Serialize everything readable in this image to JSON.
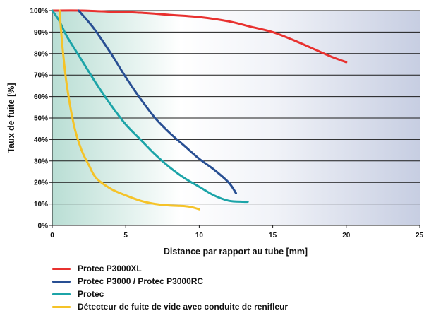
{
  "chart_data": {
    "type": "line",
    "xlabel": "Distance par rapport au tube [mm]",
    "ylabel": "Taux de fuite [%]",
    "xlim": [
      0,
      25
    ],
    "ylim": [
      0,
      100
    ],
    "x_ticks": [
      "0",
      "5",
      "10",
      "15",
      "20",
      "25"
    ],
    "y_ticks": [
      "0%",
      "10%",
      "20%",
      "30%",
      "40%",
      "50%",
      "60%",
      "70%",
      "80%",
      "90%",
      "100%"
    ],
    "grid": "horizontal",
    "legend_position": "bottom",
    "series": [
      {
        "name": "Protec P3000XL",
        "color": "#e8312f",
        "points": [
          [
            0,
            100
          ],
          [
            2,
            100
          ],
          [
            4,
            99.5
          ],
          [
            6,
            99
          ],
          [
            8,
            98
          ],
          [
            10,
            97
          ],
          [
            12,
            95
          ],
          [
            13.5,
            92.5
          ],
          [
            15,
            90
          ],
          [
            16.5,
            86
          ],
          [
            18,
            81.5
          ],
          [
            19,
            78.5
          ],
          [
            20,
            76
          ]
        ]
      },
      {
        "name": "Protec P3000 / Protec P3000RC",
        "color": "#284f93",
        "points": [
          [
            1.8,
            100
          ],
          [
            2.8,
            92
          ],
          [
            4,
            80
          ],
          [
            5,
            69
          ],
          [
            6,
            59
          ],
          [
            7,
            50
          ],
          [
            8,
            43
          ],
          [
            9,
            37
          ],
          [
            10,
            31
          ],
          [
            11,
            26
          ],
          [
            12,
            20
          ],
          [
            12.5,
            15
          ]
        ]
      },
      {
        "name": "Protec",
        "color": "#1ca4a8",
        "points": [
          [
            0,
            100
          ],
          [
            0.5,
            95
          ],
          [
            1,
            88
          ],
          [
            2,
            77
          ],
          [
            3,
            66
          ],
          [
            4,
            56
          ],
          [
            5,
            47
          ],
          [
            6,
            40
          ],
          [
            7,
            33
          ],
          [
            8,
            27
          ],
          [
            9,
            22
          ],
          [
            10,
            18
          ],
          [
            11,
            14
          ],
          [
            12,
            11.5
          ],
          [
            13,
            11
          ],
          [
            13.3,
            11
          ]
        ]
      },
      {
        "name": "Détecteur de fuite de vide avec conduite de renifleur",
        "color": "#f5c328",
        "points": [
          [
            0.5,
            100
          ],
          [
            0.7,
            83
          ],
          [
            1,
            65
          ],
          [
            1.5,
            46
          ],
          [
            2,
            35
          ],
          [
            2.5,
            28
          ],
          [
            3,
            22
          ],
          [
            4,
            17
          ],
          [
            5,
            14
          ],
          [
            6,
            11.5
          ],
          [
            7,
            10
          ],
          [
            8,
            9.3
          ],
          [
            9,
            9
          ],
          [
            9.5,
            8.5
          ],
          [
            10,
            7.5
          ]
        ]
      }
    ]
  }
}
